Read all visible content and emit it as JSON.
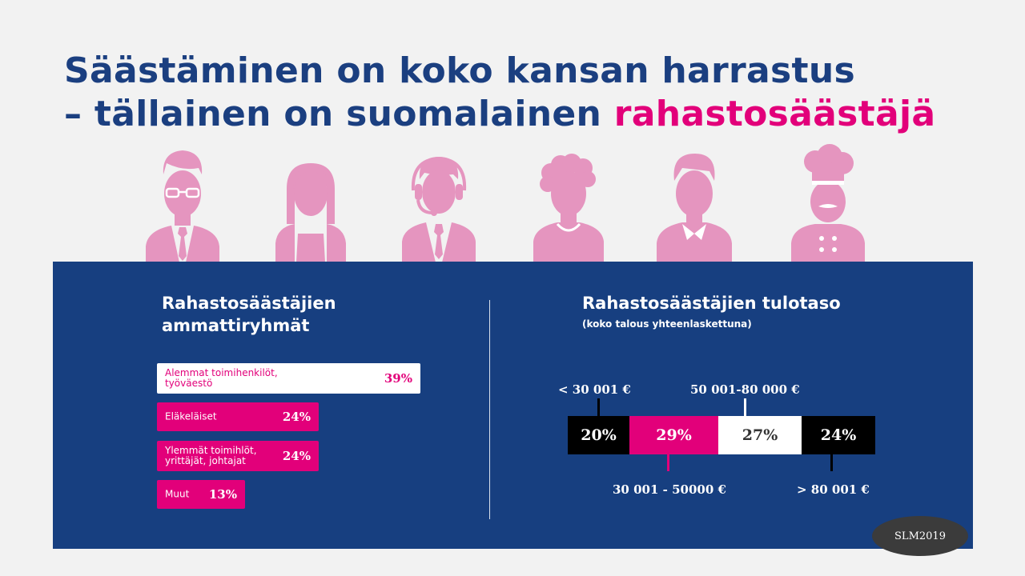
{
  "title": {
    "line1": "Säästäminen on koko kansan harrastus",
    "line2_prefix": "– tällainen on suomalainen ",
    "line2_highlight": "rahastosäästäjä"
  },
  "icons": [
    "businessman-icon",
    "woman-icon",
    "customer-service-icon",
    "curly-hair-person-icon",
    "man-icon",
    "chef-icon"
  ],
  "colors": {
    "navy": "#173f80",
    "pink": "#e2007a",
    "icon_pink": "#e595bf",
    "black": "#000000",
    "white": "#ffffff"
  },
  "occupations": {
    "title_line1": "Rahastosäästäjien",
    "title_line2": "ammattiryhmät"
  },
  "income": {
    "title": "Rahastosäästäjien tulotaso",
    "subtitle": "(koko talous yhteenlaskettuna)"
  },
  "badge": "SLM2019",
  "chart_data": [
    {
      "type": "bar",
      "orientation": "horizontal",
      "title": "Rahastosäästäjien ammattiryhmät",
      "categories": [
        "Alemmat toimihenkilöt, työväestö",
        "Eläkeläiset",
        "Ylemmät toimihlöt, yrittäjät, johtajat",
        "Muut"
      ],
      "category_lines": [
        [
          "Alemmat toimihenkilöt,",
          "työväestö"
        ],
        [
          "Eläkeläiset"
        ],
        [
          "Ylemmät toimihlöt,",
          "yrittäjät, johtajat"
        ],
        [
          "Muut"
        ]
      ],
      "values": [
        39,
        24,
        24,
        13
      ],
      "value_labels": [
        "39%",
        "24%",
        "24%",
        "13%"
      ],
      "bar_colors": [
        "#ffffff",
        "#e2007a",
        "#e2007a",
        "#e2007a"
      ],
      "label_colors": [
        "#e2007a",
        "#ffffff",
        "#ffffff",
        "#ffffff"
      ]
    },
    {
      "type": "bar",
      "orientation": "stacked-horizontal",
      "title": "Rahastosäästäjien tulotaso",
      "subtitle": "(koko talous yhteenlaskettuna)",
      "categories": [
        "< 30 001 €",
        "30 001 - 50000 €",
        "50 001-80 000 €",
        "> 80 001 €"
      ],
      "values": [
        20,
        29,
        27,
        24
      ],
      "value_labels": [
        "20%",
        "29%",
        "27%",
        "24%"
      ],
      "colors": [
        "#000000",
        "#e2007a",
        "#ffffff",
        "#000000"
      ],
      "text_colors": [
        "#ffffff",
        "#ffffff",
        "#333333",
        "#ffffff"
      ],
      "label_side": [
        "top",
        "bottom",
        "top",
        "bottom"
      ]
    }
  ]
}
